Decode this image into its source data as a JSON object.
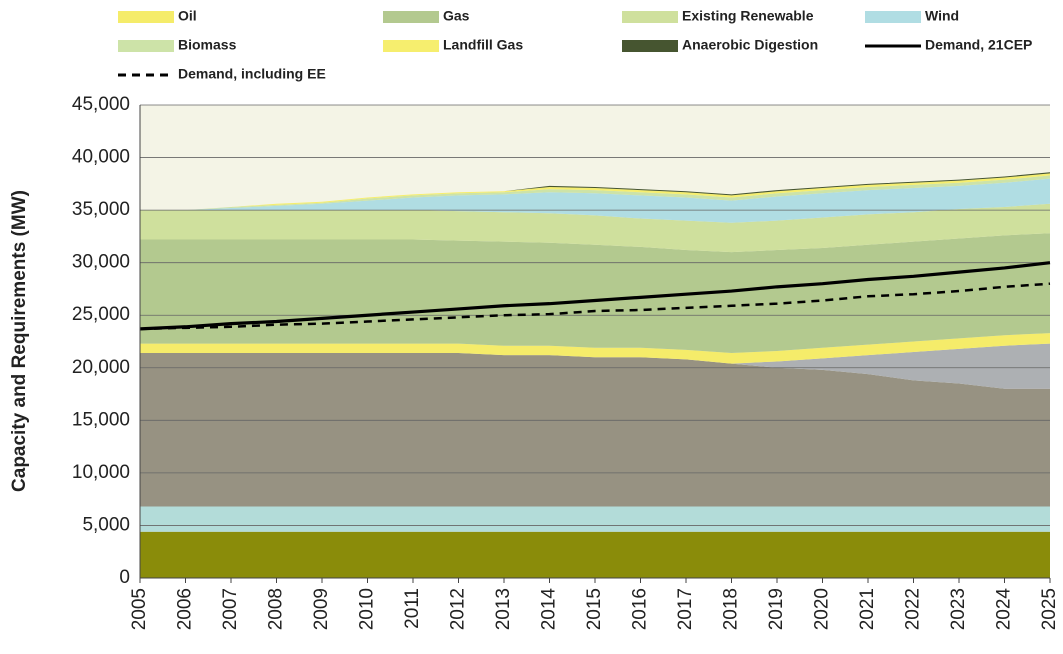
{
  "chart_data": {
    "type": "stacked_area",
    "y_label": "Capacity and Requirements (MW)",
    "categories": [
      "2005",
      "2006",
      "2007",
      "2008",
      "2009",
      "2010",
      "2011",
      "2012",
      "2013",
      "2014",
      "2015",
      "2016",
      "2017",
      "2018",
      "2019",
      "2020",
      "2021",
      "2022",
      "2023",
      "2024",
      "2025"
    ],
    "ylim": [
      0,
      45000
    ],
    "yticks": [
      0,
      {
        "value": 5000,
        "label": "5,000"
      },
      {
        "value": 10000,
        "label": "10,000"
      },
      {
        "value": 15000,
        "label": "15,000"
      },
      {
        "value": 20000,
        "label": "20,000"
      },
      {
        "value": 25000,
        "label": "25,000"
      },
      {
        "value": 30000,
        "label": "30,000"
      },
      {
        "value": 35000,
        "label": "35,000"
      },
      {
        "value": 40000,
        "label": "40,000"
      },
      {
        "value": 45000,
        "label": "45,000"
      }
    ],
    "grid": true,
    "plot_background": "#f4f4e6",
    "series": [
      {
        "color": "#8a8c0a",
        "values": [
          4400,
          4400,
          4400,
          4400,
          4400,
          4400,
          4400,
          4400,
          4400,
          4400,
          4400,
          4400,
          4400,
          4400,
          4400,
          4400,
          4400,
          4400,
          4400,
          4400,
          4400
        ]
      },
      {
        "color": "#b3dcd9",
        "values": [
          2400,
          2400,
          2400,
          2400,
          2400,
          2400,
          2400,
          2400,
          2400,
          2400,
          2400,
          2400,
          2400,
          2400,
          2400,
          2400,
          2400,
          2400,
          2400,
          2400,
          2400
        ]
      },
      {
        "color": "#979282",
        "values": [
          14600,
          14600,
          14600,
          14600,
          14600,
          14600,
          14600,
          14600,
          14400,
          14400,
          14200,
          14200,
          14000,
          13600,
          13200,
          13000,
          12600,
          12000,
          11700,
          11200,
          11200
        ]
      },
      {
        "color": "#adb0b3",
        "values": [
          0,
          0,
          0,
          0,
          0,
          0,
          0,
          0,
          0,
          0,
          0,
          0,
          0,
          0,
          600,
          1100,
          1800,
          2700,
          3300,
          4100,
          4300
        ]
      },
      {
        "name": "Oil",
        "color": "#f5ec6a",
        "values": [
          900,
          900,
          900,
          900,
          900,
          900,
          900,
          900,
          900,
          900,
          900,
          900,
          900,
          1000,
          1000,
          1000,
          1000,
          1000,
          1000,
          1000,
          1000
        ]
      },
      {
        "name": "Gas",
        "color": "#b3c98f",
        "values": [
          9900,
          9900,
          9900,
          9900,
          9900,
          9900,
          9900,
          9800,
          9900,
          9800,
          9800,
          9600,
          9500,
          9600,
          9600,
          9500,
          9500,
          9500,
          9500,
          9500,
          9500
        ]
      },
      {
        "name": "Existing Renewable",
        "color": "#cfe09d",
        "values": [
          2800,
          2800,
          2800,
          2800,
          2800,
          2800,
          2800,
          2800,
          2800,
          2800,
          2800,
          2700,
          2800,
          2800,
          2800,
          2900,
          2900,
          2800,
          2800,
          2700,
          2800
        ]
      },
      {
        "name": "Wind",
        "color": "#b0dde3",
        "values": [
          0,
          0,
          200,
          400,
          600,
          900,
          1200,
          1500,
          1700,
          2000,
          2100,
          2200,
          2200,
          2100,
          2300,
          2300,
          2300,
          2300,
          2200,
          2300,
          2400
        ]
      },
      {
        "name": "Biomass",
        "color": "#cde3a8",
        "values": [
          0,
          0,
          100,
          100,
          100,
          200,
          200,
          200,
          200,
          300,
          300,
          300,
          300,
          300,
          300,
          300,
          300,
          300,
          300,
          300,
          300
        ]
      },
      {
        "name": "Landfill Gas",
        "color": "#f6ee6e",
        "values": [
          0,
          0,
          0,
          100,
          100,
          100,
          100,
          100,
          100,
          200,
          200,
          200,
          200,
          200,
          200,
          200,
          200,
          200,
          200,
          200,
          200
        ]
      },
      {
        "name": "Anaerobic Digestion",
        "color": "#465530",
        "values": [
          0,
          0,
          0,
          0,
          0,
          0,
          0,
          0,
          0,
          100,
          100,
          100,
          100,
          100,
          100,
          100,
          100,
          100,
          100,
          100,
          100
        ]
      }
    ],
    "lines": [
      {
        "name": "Demand, 21CEP",
        "color": "#000000",
        "style": "solid",
        "values": [
          23700,
          23900,
          24200,
          24400,
          24700,
          25000,
          25300,
          25600,
          25900,
          26100,
          26400,
          26700,
          27000,
          27300,
          27700,
          28000,
          28400,
          28700,
          29100,
          29500,
          30000
        ]
      },
      {
        "name": "Demand, including EE",
        "color": "#000000",
        "style": "dashed",
        "values": [
          23700,
          23800,
          23900,
          24100,
          24200,
          24400,
          24600,
          24800,
          25000,
          25100,
          25400,
          25500,
          25700,
          25900,
          26100,
          26400,
          26800,
          27000,
          27300,
          27700,
          28000
        ]
      }
    ]
  }
}
